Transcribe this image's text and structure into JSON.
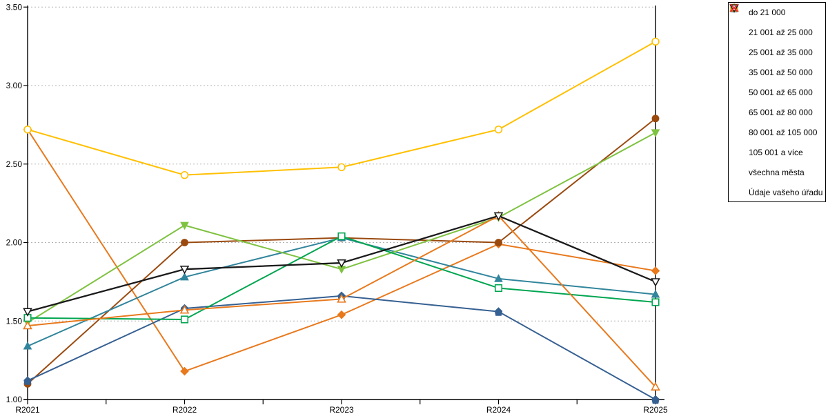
{
  "chart_data": {
    "type": "line",
    "title": "",
    "xlabel": "",
    "ylabel": "",
    "categories": [
      "R2021",
      "R2022",
      "R2023",
      "R2024",
      "R2025"
    ],
    "y_tick_labels": [
      "1.00",
      "1.50",
      "2.00",
      "2.50",
      "3.00",
      "3.50"
    ],
    "ylim": [
      1.0,
      3.5
    ],
    "grid": "horizontal dotted lines every 0.50",
    "grid_color": "#b3b3b3",
    "axis_color": "#000000",
    "legend_position": "right",
    "series": [
      {
        "name": "do 21 000",
        "color": "#E8791D",
        "marker": "diamond",
        "style": "filled",
        "values": [
          2.72,
          1.18,
          1.54,
          1.99,
          1.82
        ]
      },
      {
        "name": "21 001 až 25 000",
        "color": "#9A4A0F",
        "marker": "circle",
        "style": "filled",
        "values": [
          1.1,
          2.0,
          2.03,
          2.0,
          2.79
        ]
      },
      {
        "name": "25 001 až 35 000",
        "color": "#31859C",
        "marker": "triangle-up",
        "style": "filled",
        "values": [
          1.34,
          1.78,
          2.03,
          1.77,
          1.67
        ]
      },
      {
        "name": "35 001 až 50 000",
        "color": "#366092",
        "marker": "pentagon",
        "style": "filled",
        "values": [
          1.12,
          1.58,
          1.66,
          1.56,
          1.0
        ]
      },
      {
        "name": "50 001 až 65 000",
        "color": "#7FC241",
        "marker": "triangle-down",
        "style": "filled",
        "values": [
          1.49,
          2.11,
          1.83,
          2.16,
          2.7
        ]
      },
      {
        "name": "65 001 až 80 000",
        "color": "#00A550",
        "marker": "square",
        "style": "open",
        "values": [
          1.52,
          1.51,
          2.04,
          1.71,
          1.62
        ]
      },
      {
        "name": "80 001 až 105 000",
        "color": "#FFC000",
        "marker": "circle",
        "style": "open",
        "values": [
          2.72,
          2.43,
          2.48,
          2.72,
          3.28
        ]
      },
      {
        "name": "105 001 a více",
        "color": "#E8791D",
        "marker": "triangle-up",
        "style": "open",
        "values": [
          1.47,
          1.57,
          1.64,
          2.17,
          1.08
        ]
      },
      {
        "name": "všechna města",
        "color": "#1A1A1A",
        "marker": "triangle-down",
        "style": "open",
        "values": [
          1.56,
          1.83,
          1.87,
          2.17,
          1.75
        ]
      },
      {
        "name": "Údaje vašeho úřadu",
        "color": "#FF2A2A",
        "marker": "x",
        "style": "open",
        "values": []
      }
    ]
  }
}
